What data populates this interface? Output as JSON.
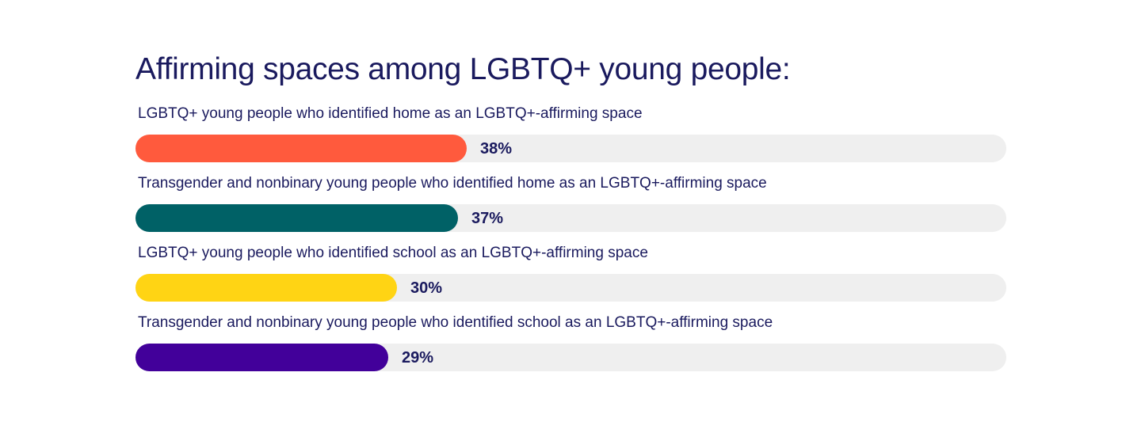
{
  "chart_data": {
    "type": "bar",
    "orientation": "horizontal",
    "title": "Affirming spaces among LGBTQ+ young people:",
    "categories": [
      "LGBTQ+ young people who identified home as an LGBTQ+-affirming space",
      "Transgender and nonbinary young people who identified home as an LGBTQ+-affirming space",
      "LGBTQ+ young people who identified school as an LGBTQ+-affirming space",
      "Transgender and nonbinary young people who identified school as an LGBTQ+-affirming space"
    ],
    "values": [
      38,
      37,
      30,
      29
    ],
    "value_labels": [
      "38%",
      "37%",
      "30%",
      "29%"
    ],
    "colors": [
      "#ff5a3d",
      "#006166",
      "#ffd414",
      "#42009a"
    ],
    "track_color": "#efefef",
    "xlim": [
      0,
      100
    ],
    "grid": false,
    "legend": "none"
  }
}
